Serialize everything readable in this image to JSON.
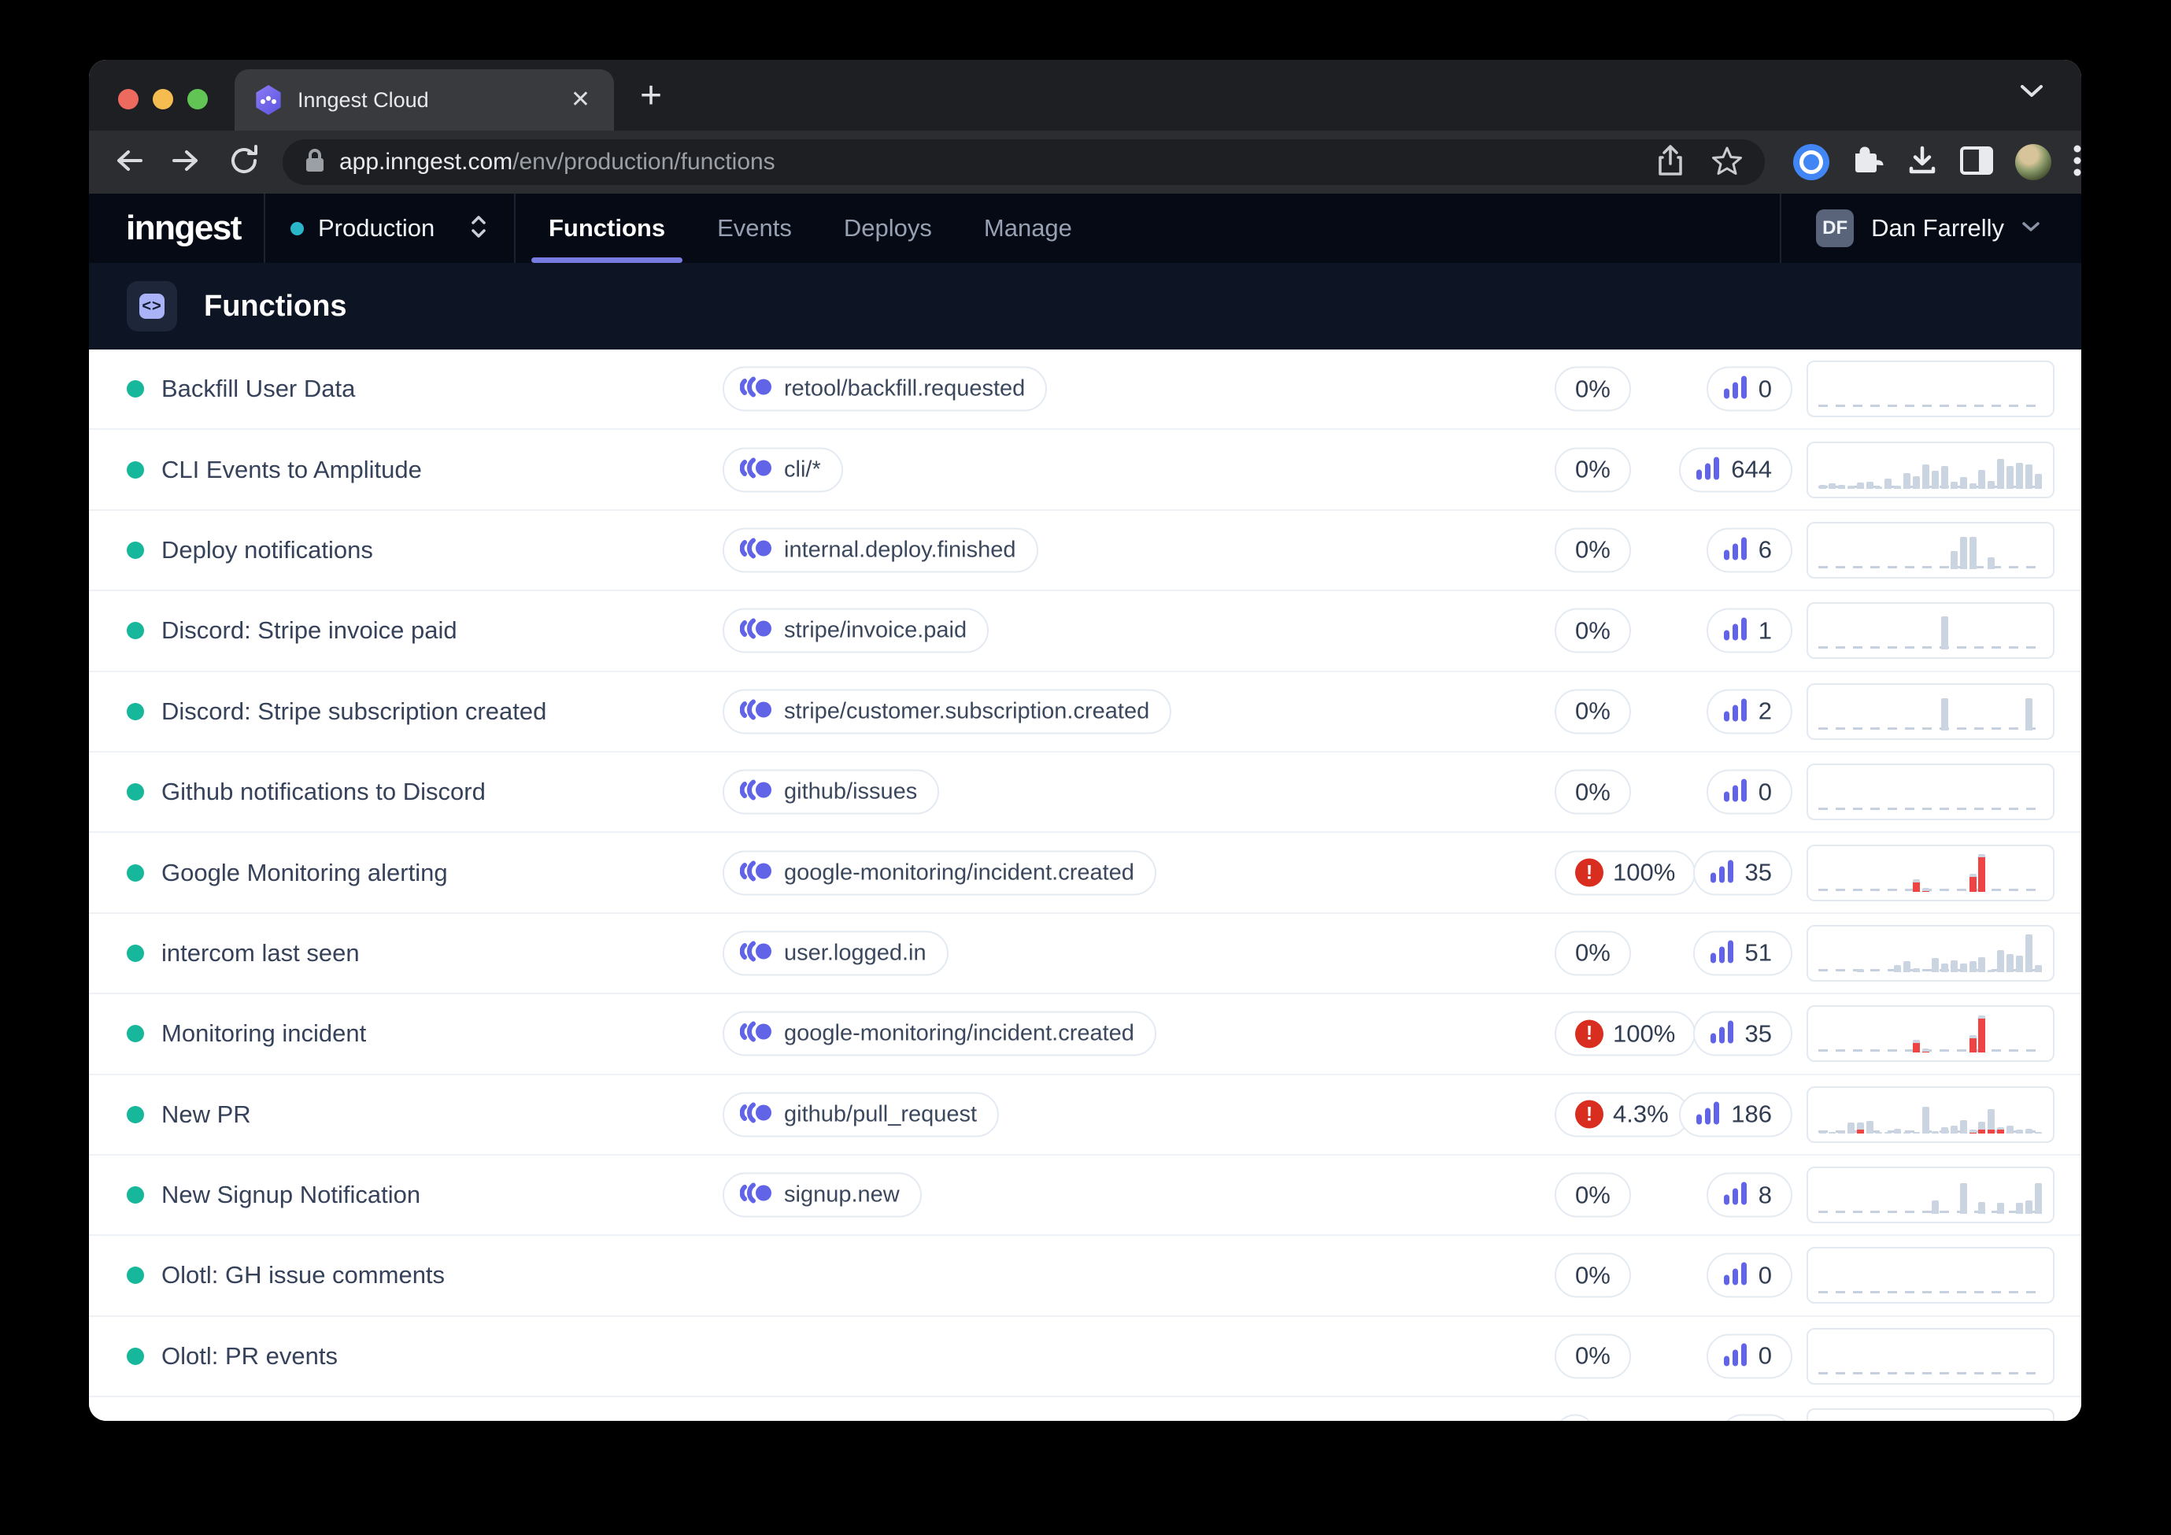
{
  "browser": {
    "tab_title": "Inngest Cloud",
    "url_host": "app.inngest.com",
    "url_path": "/env/production/functions"
  },
  "nav": {
    "logo_text": "inngest",
    "environment": "Production",
    "tabs": [
      {
        "label": "Functions",
        "active": true
      },
      {
        "label": "Events",
        "active": false
      },
      {
        "label": "Deploys",
        "active": false
      },
      {
        "label": "Manage",
        "active": false
      }
    ],
    "user": {
      "initials": "DF",
      "name": "Dan Farrelly"
    }
  },
  "page": {
    "title": "Functions",
    "icon_glyph": "<>"
  },
  "colors": {
    "accent_indigo": "#6164e7",
    "status_teal": "#16b79b",
    "env_cyan": "#2ab5c9",
    "error_red": "#d92d20",
    "bar_gray": "#cbd5e1",
    "bar_red": "#ef4444",
    "active_tab_underline": "#777be2"
  },
  "table": {
    "rows": [
      {
        "name": "Backfill User Data",
        "event": "retool/backfill.requested",
        "rate": "0%",
        "rate_error": false,
        "count": "0",
        "bars": []
      },
      {
        "name": "CLI Events to Amplitude",
        "event": "cli/*",
        "rate": "0%",
        "rate_error": false,
        "count": "644",
        "bars": [
          10,
          14,
          10,
          8,
          16,
          18,
          6,
          26,
          8,
          40,
          32,
          62,
          45,
          58,
          18,
          30,
          14,
          48,
          20,
          75,
          58,
          66,
          62,
          38
        ]
      },
      {
        "name": "Deploy notifications",
        "event": "internal.deploy.finished",
        "rate": "0%",
        "rate_error": false,
        "count": "6",
        "bars": [
          0,
          0,
          0,
          0,
          0,
          0,
          0,
          0,
          0,
          0,
          0,
          0,
          0,
          0,
          45,
          82,
          82,
          0,
          30,
          0,
          0,
          0,
          0,
          0
        ]
      },
      {
        "name": "Discord: Stripe invoice paid",
        "event": "stripe/invoice.paid",
        "rate": "0%",
        "rate_error": false,
        "count": "1",
        "bars": [
          0,
          0,
          0,
          0,
          0,
          0,
          0,
          0,
          0,
          0,
          0,
          0,
          0,
          85,
          0,
          0,
          0,
          0,
          0,
          0,
          0,
          0,
          0,
          0
        ]
      },
      {
        "name": "Discord: Stripe subscription created",
        "event": "stripe/customer.subscription.created",
        "rate": "0%",
        "rate_error": false,
        "count": "2",
        "bars": [
          0,
          0,
          0,
          0,
          0,
          0,
          0,
          0,
          0,
          0,
          0,
          0,
          0,
          82,
          0,
          0,
          0,
          0,
          0,
          0,
          0,
          0,
          82,
          0
        ]
      },
      {
        "name": "Github notifications to Discord",
        "event": "github/issues",
        "rate": "0%",
        "rate_error": false,
        "count": "0",
        "bars": []
      },
      {
        "name": "Google Monitoring alerting",
        "event": "google-monitoring/incident.created",
        "rate": "100%",
        "rate_error": true,
        "count": "35",
        "bars": [
          0,
          0,
          0,
          0,
          0,
          0,
          0,
          0,
          0,
          0,
          [
            32,
            "r"
          ],
          [
            10,
            "r"
          ],
          0,
          0,
          0,
          0,
          [
            45,
            "r"
          ],
          [
            95,
            "r"
          ],
          0,
          0,
          0,
          0,
          0,
          0
        ]
      },
      {
        "name": "intercom last seen",
        "event": "user.logged.in",
        "rate": "0%",
        "rate_error": false,
        "count": "51",
        "bars": [
          0,
          0,
          0,
          0,
          8,
          0,
          0,
          0,
          18,
          28,
          10,
          0,
          35,
          22,
          30,
          22,
          28,
          38,
          6,
          55,
          45,
          42,
          95,
          18
        ]
      },
      {
        "name": "Monitoring incident",
        "event": "google-monitoring/incident.created",
        "rate": "100%",
        "rate_error": true,
        "count": "35",
        "bars": [
          0,
          0,
          0,
          0,
          0,
          0,
          0,
          0,
          0,
          0,
          [
            32,
            "r"
          ],
          [
            10,
            "r"
          ],
          0,
          0,
          0,
          0,
          [
            45,
            "r"
          ],
          [
            95,
            "r"
          ],
          0,
          0,
          0,
          0,
          0,
          0
        ]
      },
      {
        "name": "New PR",
        "event": "github/pull_request",
        "rate": "4.3%",
        "rate_error": true,
        "count": "186",
        "bars": [
          4,
          4,
          6,
          28,
          [
            28,
            "m"
          ],
          32,
          4,
          4,
          12,
          4,
          4,
          68,
          6,
          16,
          20,
          34,
          [
            10,
            "r"
          ],
          [
            30,
            "m"
          ],
          [
            62,
            "m"
          ],
          [
            16,
            "m"
          ],
          20,
          10,
          12,
          4
        ]
      },
      {
        "name": "New Signup Notification",
        "event": "signup.new",
        "rate": "0%",
        "rate_error": false,
        "count": "8",
        "bars": [
          0,
          0,
          0,
          0,
          0,
          0,
          0,
          0,
          0,
          0,
          0,
          0,
          35,
          0,
          0,
          78,
          0,
          30,
          0,
          28,
          0,
          28,
          35,
          78
        ]
      },
      {
        "name": "Olotl: GH issue comments",
        "event": null,
        "rate": "0%",
        "rate_error": false,
        "count": "0",
        "bars": []
      },
      {
        "name": "Olotl: PR events",
        "event": null,
        "rate": "0%",
        "rate_error": false,
        "count": "0",
        "bars": []
      },
      {
        "name": "",
        "event": null,
        "rate": "",
        "rate_error": false,
        "count": "",
        "bars": []
      }
    ]
  }
}
